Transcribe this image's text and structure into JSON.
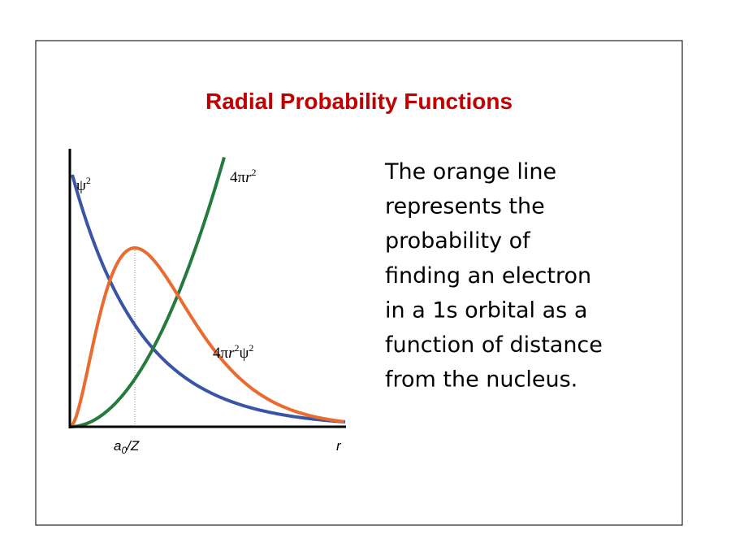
{
  "header": {
    "title": "Radial Probability Functions"
  },
  "figure": {
    "labels": {
      "psi_squared": {
        "base": "ψ",
        "sup": "2"
      },
      "four_pi_r_squared": {
        "coef": "4π",
        "var": "r",
        "sup": "2"
      },
      "product": {
        "coef": "4π",
        "var": "r",
        "sup": "2",
        "base": "ψ",
        "sup2": "2"
      },
      "a0_over_z": {
        "base": "a",
        "sub": "0",
        "rest": "/Z"
      },
      "r_axis": "r"
    }
  },
  "body": {
    "lines": [
      "The orange line",
      "represents the",
      "probability of",
      "finding an electron",
      "in a 1s orbital as a",
      "function of distance",
      "from the nucleus."
    ]
  }
}
